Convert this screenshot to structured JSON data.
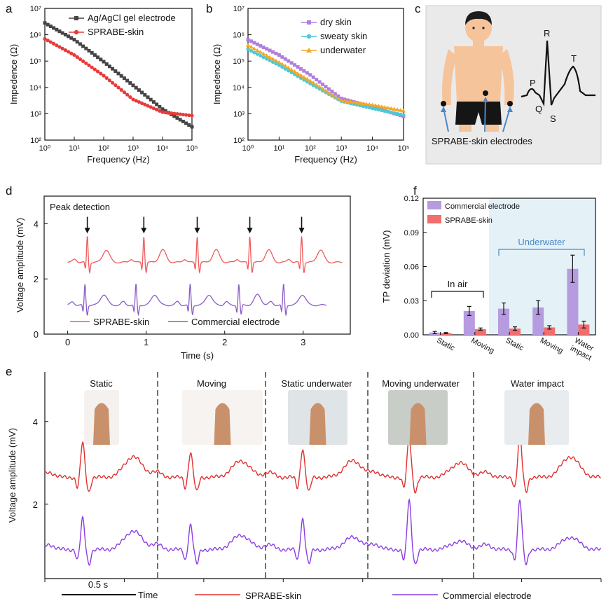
{
  "panels": {
    "a": "a",
    "b": "b",
    "c": "c",
    "d": "d",
    "e": "e",
    "f": "f"
  },
  "chart_data": [
    {
      "id": "a",
      "type": "line",
      "xlabel": "Frequency (Hz)",
      "ylabel": "Impedence (Ω)",
      "xscale": "log",
      "yscale": "log",
      "xlim": [
        1,
        100000
      ],
      "ylim": [
        100,
        10000000
      ],
      "xticks": [
        "10⁰",
        "10¹",
        "10²",
        "10³",
        "10⁴",
        "10⁵"
      ],
      "yticks": [
        "10²",
        "10³",
        "10⁴",
        "10⁵",
        "10⁶",
        "10⁷"
      ],
      "legend": "top-right",
      "series": [
        {
          "name": "Ag/AgCl gel electrode",
          "color": "#444444",
          "marker": "square",
          "x": [
            1,
            10,
            100,
            1000,
            10000,
            100000
          ],
          "y": [
            2800000,
            650000,
            95000,
            12000,
            1500,
            320
          ]
        },
        {
          "name": "SPRABE-skin",
          "color": "#e83a3a",
          "marker": "circle",
          "x": [
            1,
            10,
            100,
            1000,
            10000,
            100000
          ],
          "y": [
            700000,
            170000,
            28000,
            3500,
            1150,
            850
          ]
        }
      ]
    },
    {
      "id": "b",
      "type": "line",
      "xlabel": "Frequency (Hz)",
      "ylabel": "Impedence (Ω)",
      "xscale": "log",
      "yscale": "log",
      "xlim": [
        1,
        100000
      ],
      "ylim": [
        100,
        10000000
      ],
      "xticks": [
        "10⁰",
        "10¹",
        "10²",
        "10³",
        "10⁴",
        "10⁵"
      ],
      "yticks": [
        "10²",
        "10³",
        "10⁴",
        "10⁵",
        "10⁶",
        "10⁷"
      ],
      "legend": "top-right",
      "series": [
        {
          "name": "dry skin",
          "color": "#b07fdd",
          "marker": "square",
          "x": [
            1,
            10,
            100,
            1000,
            10000,
            100000
          ],
          "y": [
            650000,
            170000,
            30000,
            3800,
            1800,
            800
          ]
        },
        {
          "name": "sweaty skin",
          "color": "#4cc9d8",
          "marker": "circle",
          "x": [
            1,
            10,
            100,
            1000,
            10000,
            100000
          ],
          "y": [
            280000,
            70000,
            14000,
            3000,
            1600,
            900
          ]
        },
        {
          "name": "underwater",
          "color": "#f5a623",
          "marker": "triangle",
          "x": [
            1,
            10,
            100,
            1000,
            10000,
            100000
          ],
          "y": [
            400000,
            90000,
            18000,
            3200,
            2200,
            1300
          ]
        }
      ]
    },
    {
      "id": "d",
      "type": "line",
      "title": "Peak detection",
      "xlabel": "Time (s)",
      "ylabel": "Voltage amplitude (mV)",
      "xlim": [
        -0.3,
        3.6
      ],
      "ylim": [
        0,
        5
      ],
      "xticks": [
        "0",
        "1",
        "2",
        "3"
      ],
      "yticks": [
        "0",
        "2",
        "4"
      ],
      "peaks_s": [
        0.25,
        0.97,
        1.65,
        2.32,
        2.98
      ],
      "legend": "bottom",
      "series": [
        {
          "name": "SPRABE-skin",
          "color": "#ee5a5a",
          "baseline": 2.6,
          "beats_s": [
            0.25,
            0.97,
            1.65,
            2.32,
            2.98
          ],
          "x_end": 3.5
        },
        {
          "name": "Commercial electrode",
          "color": "#8a5cc6",
          "baseline": 1.05,
          "beats_s": [
            0.22,
            0.87,
            1.56,
            2.18,
            2.75
          ],
          "x_end": 3.3
        }
      ]
    },
    {
      "id": "f",
      "type": "bar",
      "xlabel": "",
      "ylabel": "TP deviation (mV)",
      "ylim": [
        0,
        0.12
      ],
      "yticks": [
        "0.00",
        "0.03",
        "0.06",
        "0.09",
        "0.12"
      ],
      "categories": [
        "Static",
        "Moving",
        "Static",
        "Moving",
        "Water impact"
      ],
      "groups": [
        {
          "label": "In air",
          "categories": [
            0,
            1
          ]
        },
        {
          "label": "Underwater",
          "categories": [
            2,
            3,
            4
          ]
        }
      ],
      "legend": "top-left",
      "series": [
        {
          "name": "Commercial electrode",
          "color": "#b79be0",
          "values": [
            0.002,
            0.021,
            0.023,
            0.024,
            0.058
          ],
          "errors": [
            0.001,
            0.004,
            0.005,
            0.006,
            0.012
          ]
        },
        {
          "name": "SPRABE-skin",
          "color": "#f26d6d",
          "values": [
            0.0015,
            0.005,
            0.0055,
            0.0065,
            0.009
          ],
          "errors": [
            0.0005,
            0.001,
            0.0015,
            0.0015,
            0.003
          ]
        }
      ]
    },
    {
      "id": "e",
      "type": "line",
      "ylabel": "Voltage amplitude (mV)",
      "yticks": [
        "2",
        "4"
      ],
      "sections": [
        "Static",
        "Moving",
        "Static underwater",
        "Moving underwater",
        "Water impact"
      ],
      "scale_bar": "0.5 s",
      "time_label": "Time",
      "legend": "bottom",
      "series": [
        {
          "name": "SPRABE-skin",
          "color": "#e03030",
          "baseline": 2.65,
          "r_amp": [
            0.85,
            0.6,
            0.7,
            0.95,
            1.05
          ],
          "t_amp": [
            0.5,
            0.4,
            0.4,
            0.35,
            0.5
          ]
        },
        {
          "name": "Commercial electrode",
          "color": "#8b3de0",
          "baseline": 0.9,
          "r_amp": [
            0.75,
            0.6,
            0.75,
            1.2,
            1.2
          ],
          "t_amp": [
            0.45,
            0.35,
            0.3,
            0.2,
            0.3
          ]
        }
      ]
    }
  ],
  "panel_c": {
    "electrodes_label": "SPRABE-skin electrodes",
    "waves": [
      "P",
      "Q",
      "R",
      "S",
      "T"
    ],
    "skin_color": "#f6c49b",
    "hair_color": "#1c1c1c",
    "shorts_color": "#151515",
    "arrow_color": "#4a88c7"
  }
}
